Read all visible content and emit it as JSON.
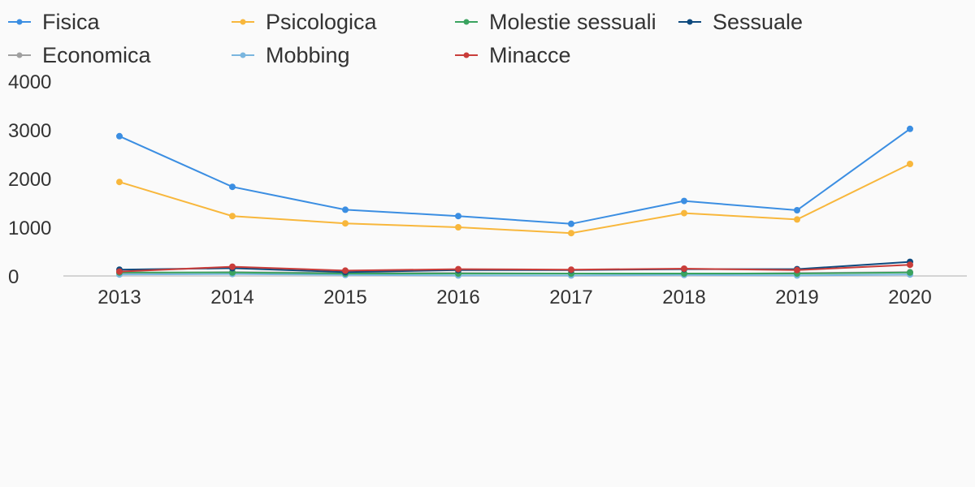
{
  "chart_data": {
    "type": "line",
    "title": "",
    "xlabel": "",
    "ylabel": "",
    "x": [
      "2013",
      "2014",
      "2015",
      "2016",
      "2017",
      "2018",
      "2019",
      "2020"
    ],
    "ylim": [
      0,
      4000
    ],
    "yticks": [
      "0",
      "1000",
      "2000",
      "3000",
      "4000"
    ],
    "grid": false,
    "legend_position": "top",
    "series": [
      {
        "name": "Fisica",
        "color": "#3b8ee2",
        "values": [
          2870,
          1830,
          1360,
          1230,
          1070,
          1540,
          1350,
          3020
        ]
      },
      {
        "name": "Psicologica",
        "color": "#f8b73c",
        "values": [
          1930,
          1230,
          1080,
          1000,
          880,
          1290,
          1160,
          2300
        ]
      },
      {
        "name": "Molestie sessuali",
        "color": "#3aa35f",
        "values": [
          70,
          70,
          50,
          50,
          50,
          50,
          50,
          70
        ]
      },
      {
        "name": "Sessuale",
        "color": "#0e4a7e",
        "values": [
          130,
          160,
          80,
          120,
          120,
          140,
          140,
          290
        ]
      },
      {
        "name": "Economica",
        "color": "#a0a0a0",
        "values": [
          60,
          80,
          60,
          60,
          50,
          40,
          60,
          80
        ]
      },
      {
        "name": "Mobbing",
        "color": "#7ab6df",
        "values": [
          30,
          40,
          20,
          10,
          10,
          20,
          10,
          30
        ]
      },
      {
        "name": "Minacce",
        "color": "#c93d3a",
        "values": [
          90,
          190,
          110,
          140,
          130,
          150,
          120,
          230
        ]
      }
    ]
  }
}
